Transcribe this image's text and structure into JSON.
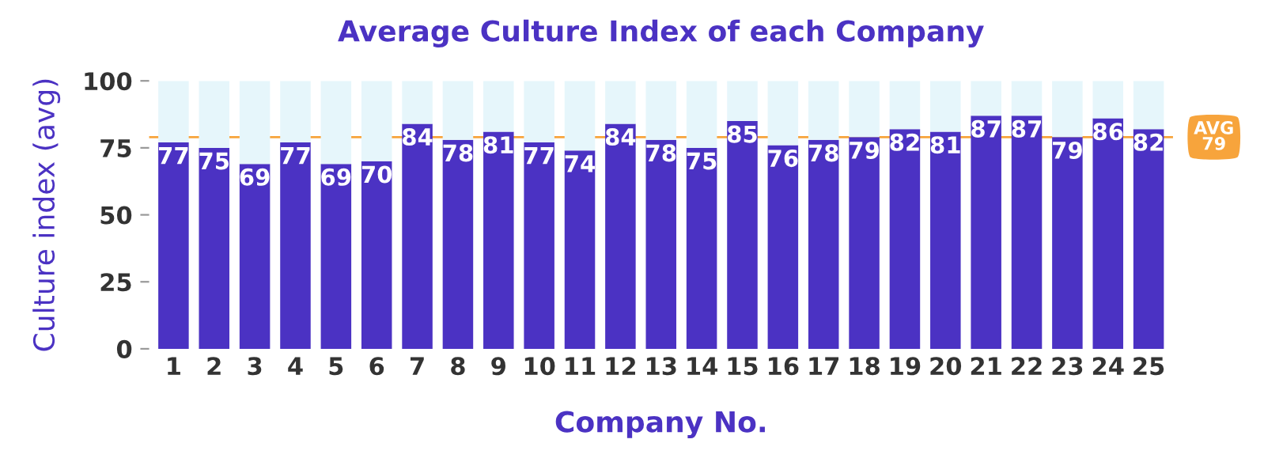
{
  "chart_data": {
    "type": "bar",
    "title": "Average Culture Index of each Company",
    "xlabel": "Company No.",
    "ylabel": "Culture index (avg)",
    "categories": [
      "1",
      "2",
      "3",
      "4",
      "5",
      "6",
      "7",
      "8",
      "9",
      "10",
      "11",
      "12",
      "13",
      "14",
      "15",
      "16",
      "17",
      "18",
      "19",
      "20",
      "21",
      "22",
      "23",
      "24",
      "25"
    ],
    "stacked": true,
    "series": [
      {
        "color": "#4b32c3",
        "data_labels": true,
        "values": [
          77,
          75,
          69,
          77,
          69,
          70,
          84,
          78,
          81,
          77,
          74,
          84,
          78,
          75,
          85,
          76,
          78,
          79,
          82,
          81,
          87,
          87,
          79,
          86,
          82
        ]
      },
      {
        "color": "#e6f6fb",
        "values": [
          23,
          25,
          31,
          23,
          31,
          30,
          16,
          22,
          19,
          23,
          26,
          16,
          22,
          25,
          15,
          24,
          22,
          21,
          18,
          19,
          13,
          13,
          21,
          14,
          18
        ]
      }
    ],
    "ylim": [
      0,
      100
    ],
    "yticks": [
      0,
      25,
      50,
      75,
      100
    ],
    "grid": false,
    "legend": false,
    "ref_lines": [
      {
        "axis": "y",
        "value": 79,
        "label": "AVG 79",
        "color": "#f7a43c"
      }
    ]
  }
}
